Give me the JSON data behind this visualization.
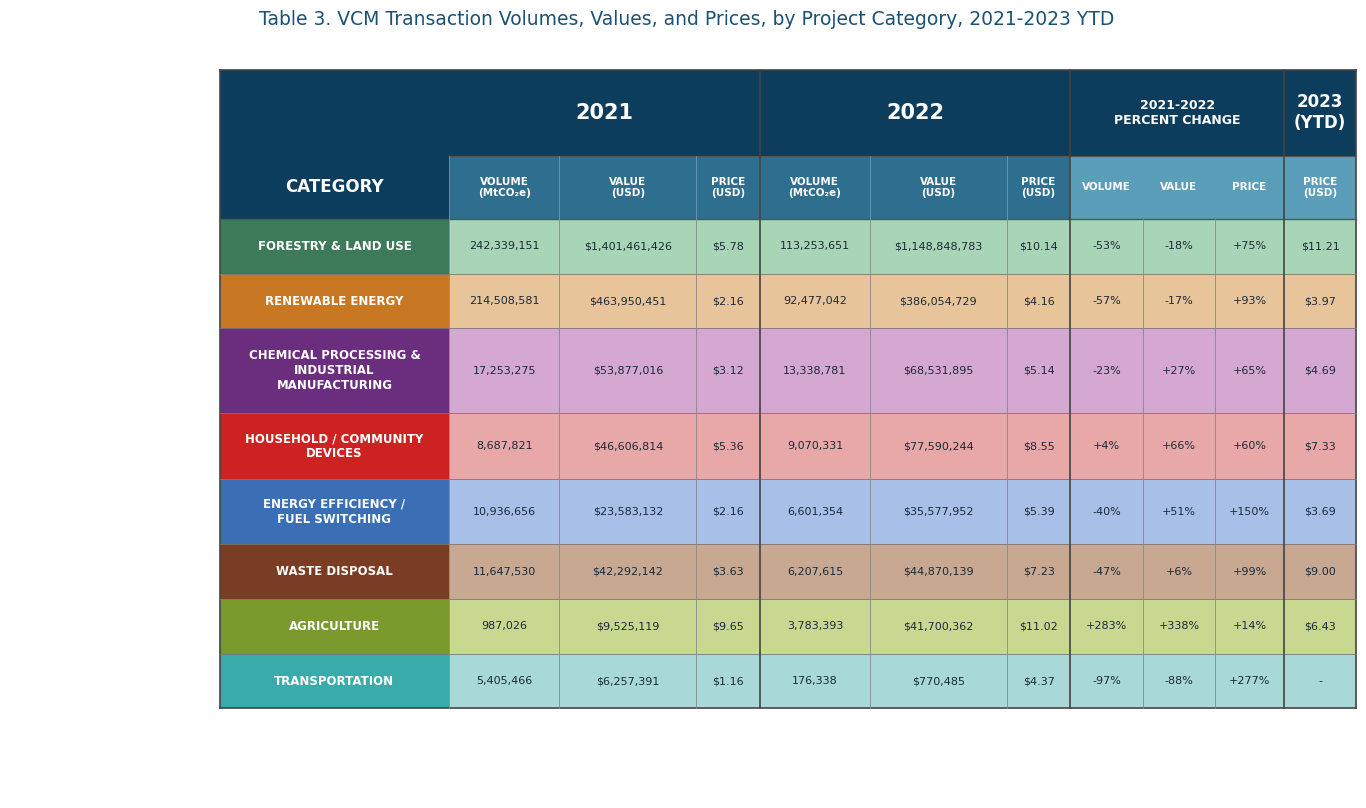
{
  "title": "Table 3. VCM Transaction Volumes, Values, and Prices, by Project Category, 2021-2023 YTD",
  "title_color": "#1a5276",
  "title_fontsize": 13.5,
  "background_color": "#ffffff",
  "header_dark_bg": "#0d3d5c",
  "header_medium_bg": "#2e6e8e",
  "header_light_bg": "#5b9eba",
  "rows": [
    {
      "category": "FORESTRY & LAND USE",
      "cat_color": "#3d7a5a",
      "row_color": "#a8d5b5",
      "vol2021": "242,339,151",
      "val2021": "$1,401,461,426",
      "price2021": "$5.78",
      "vol2022": "113,253,651",
      "val2022": "$1,148,848,783",
      "price2022": "$10.14",
      "vol_pct": "-53%",
      "val_pct": "-18%",
      "price_pct": "+75%",
      "price2023": "$11.21",
      "multiline": false
    },
    {
      "category": "RENEWABLE ENERGY",
      "cat_color": "#c87722",
      "row_color": "#e8c49a",
      "vol2021": "214,508,581",
      "val2021": "$463,950,451",
      "price2021": "$2.16",
      "vol2022": "92,477,042",
      "val2022": "$386,054,729",
      "price2022": "$4.16",
      "vol_pct": "-57%",
      "val_pct": "-17%",
      "price_pct": "+93%",
      "price2023": "$3.97",
      "multiline": false
    },
    {
      "category": "CHEMICAL PROCESSING &\nINDUSTRIAL\nMANUFACTURING",
      "cat_color": "#6b2d7e",
      "row_color": "#d4a8d0",
      "vol2021": "17,253,275",
      "val2021": "$53,877,016",
      "price2021": "$3.12",
      "vol2022": "13,338,781",
      "val2022": "$68,531,895",
      "price2022": "$5.14",
      "vol_pct": "-23%",
      "val_pct": "+27%",
      "price_pct": "+65%",
      "price2023": "$4.69",
      "multiline": true
    },
    {
      "category": "HOUSEHOLD / COMMUNITY\nDEVICES",
      "cat_color": "#cc2222",
      "row_color": "#e8a8a8",
      "vol2021": "8,687,821",
      "val2021": "$46,606,814",
      "price2021": "$5.36",
      "vol2022": "9,070,331",
      "val2022": "$77,590,244",
      "price2022": "$8.55",
      "vol_pct": "+4%",
      "val_pct": "+66%",
      "price_pct": "+60%",
      "price2023": "$7.33",
      "multiline": false
    },
    {
      "category": "ENERGY EFFICIENCY /\nFUEL SWITCHING",
      "cat_color": "#3a6eb5",
      "row_color": "#a8c0e8",
      "vol2021": "10,936,656",
      "val2021": "$23,583,132",
      "price2021": "$2.16",
      "vol2022": "6,601,354",
      "val2022": "$35,577,952",
      "price2022": "$5.39",
      "vol_pct": "-40%",
      "val_pct": "+51%",
      "price_pct": "+150%",
      "price2023": "$3.69",
      "multiline": false
    },
    {
      "category": "WASTE DISPOSAL",
      "cat_color": "#7a3c22",
      "row_color": "#c8a890",
      "vol2021": "11,647,530",
      "val2021": "$42,292,142",
      "price2021": "$3.63",
      "vol2022": "6,207,615",
      "val2022": "$44,870,139",
      "price2022": "$7.23",
      "vol_pct": "-47%",
      "val_pct": "+6%",
      "price_pct": "+99%",
      "price2023": "$9.00",
      "multiline": false
    },
    {
      "category": "AGRICULTURE",
      "cat_color": "#7a9a2e",
      "row_color": "#c8d890",
      "vol2021": "987,026",
      "val2021": "$9,525,119",
      "price2021": "$9.65",
      "vol2022": "3,783,393",
      "val2022": "$41,700,362",
      "price2022": "$11.02",
      "vol_pct": "+283%",
      "val_pct": "+338%",
      "price_pct": "+14%",
      "price2023": "$6.43",
      "multiline": false
    },
    {
      "category": "TRANSPORTATION",
      "cat_color": "#3aabab",
      "row_color": "#a8d8d8",
      "vol2021": "5,405,466",
      "val2021": "$6,257,391",
      "price2021": "$1.16",
      "vol2022": "176,338",
      "val2022": "$770,485",
      "price2022": "$4.37",
      "vol_pct": "-97%",
      "val_pct": "-88%",
      "price_pct": "+277%",
      "price2023": "-",
      "multiline": false
    }
  ]
}
